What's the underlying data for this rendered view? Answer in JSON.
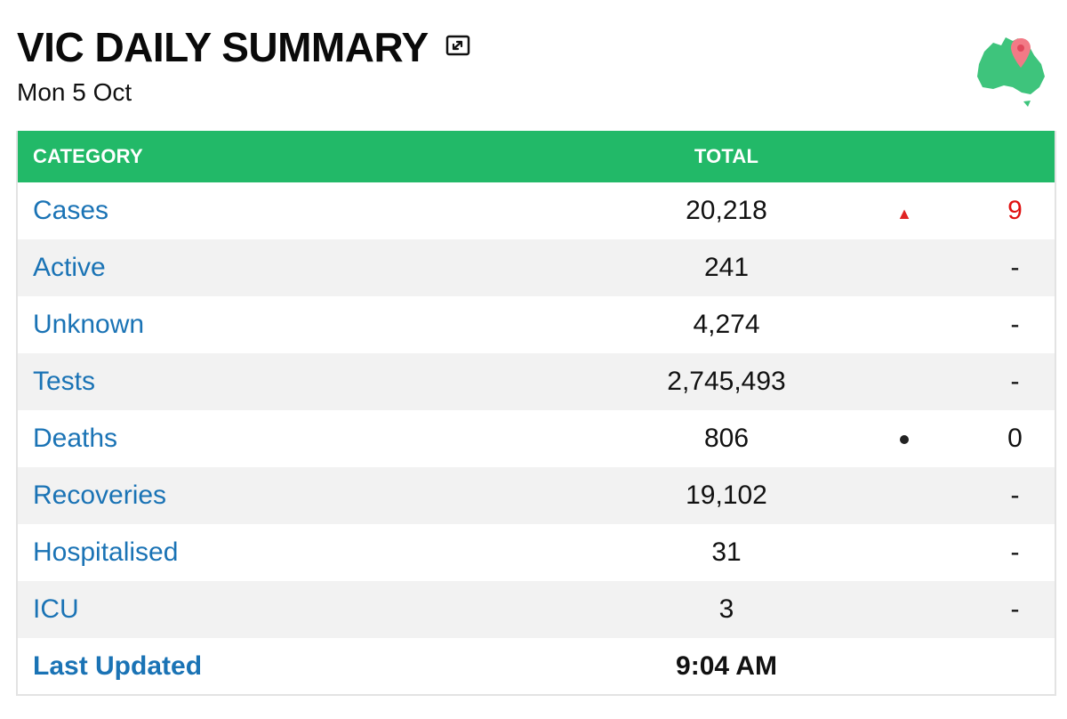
{
  "header": {
    "title": "VIC DAILY SUMMARY",
    "date": "Mon 5 Oct"
  },
  "colors": {
    "header_bg": "#22b968",
    "category_text": "#1a73b5",
    "increase": "#e01010",
    "stripe": "#f2f2f2"
  },
  "icons": {
    "expand": "external-link-icon",
    "map": "australia-map-pin-icon"
  },
  "table": {
    "columns": {
      "category": "CATEGORY",
      "total": "TOTAL"
    },
    "rows": [
      {
        "category": "Cases",
        "total": "20,218",
        "indicator": "up",
        "change": "9"
      },
      {
        "category": "Active",
        "total": "241",
        "indicator": "none",
        "change": "-"
      },
      {
        "category": "Unknown",
        "total": "4,274",
        "indicator": "none",
        "change": "-"
      },
      {
        "category": "Tests",
        "total": "2,745,493",
        "indicator": "none",
        "change": "-"
      },
      {
        "category": "Deaths",
        "total": "806",
        "indicator": "dot",
        "change": "0"
      },
      {
        "category": "Recoveries",
        "total": "19,102",
        "indicator": "none",
        "change": "-"
      },
      {
        "category": "Hospitalised",
        "total": "31",
        "indicator": "none",
        "change": "-"
      },
      {
        "category": "ICU",
        "total": "3",
        "indicator": "none",
        "change": "-"
      }
    ],
    "last_updated": {
      "label": "Last Updated",
      "value": "9:04 AM"
    }
  }
}
